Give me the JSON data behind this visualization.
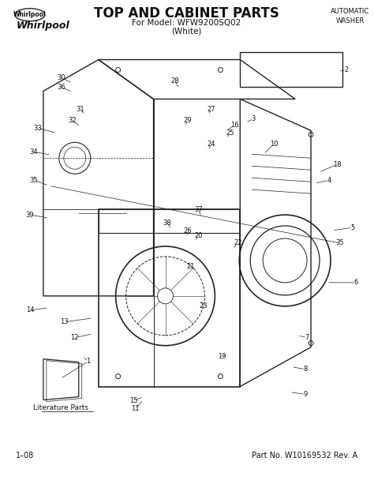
{
  "title": "TOP AND CABINET PARTS",
  "subtitle": "For Model: WFW9200SQ02",
  "subtitle2": "(White)",
  "brand": "Whirlpool",
  "top_right": "AUTOMATIC\nWASHER",
  "bottom_left": "1–08",
  "bottom_right": "Part No. W10169532 Rev. A",
  "literature_label": "Literature Parts",
  "bg_color": "#ffffff",
  "line_color": "#222222",
  "text_color": "#111111",
  "figsize": [
    4.74,
    6.13
  ],
  "dpi": 100
}
